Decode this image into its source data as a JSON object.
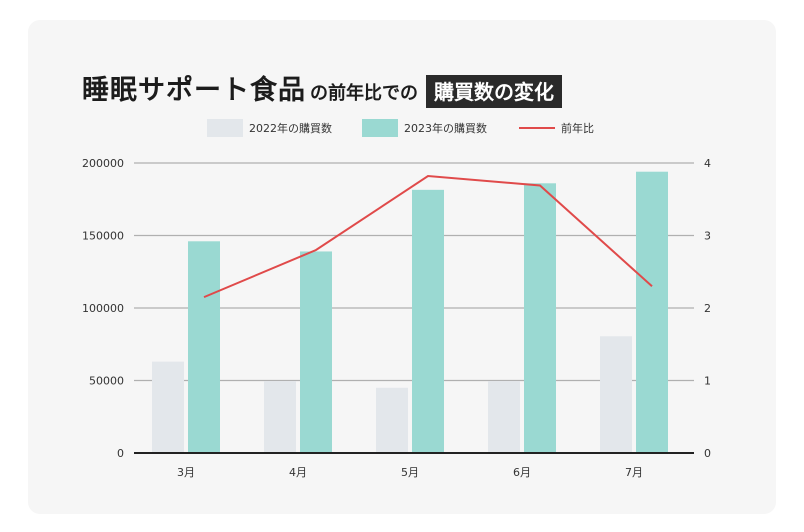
{
  "title": {
    "main": "睡眠サポート食品",
    "mid": "の前年比での",
    "highlight": "購買数の変化"
  },
  "colors": {
    "bar_2022": "#e3e7eb",
    "bar_2023": "#9ad9d2",
    "line": "#e04a4a",
    "grid": "#b0b0b0",
    "axis": "#222222",
    "text": "#333333"
  },
  "chart_data": {
    "type": "bar",
    "categories": [
      "3月",
      "4月",
      "5月",
      "6月",
      "7月"
    ],
    "series": [
      {
        "name": "2022年の購買数",
        "kind": "bar",
        "axis": "left",
        "values": [
          63000,
          49500,
          45000,
          49500,
          80500
        ]
      },
      {
        "name": "2023年の購買数",
        "kind": "bar",
        "axis": "left",
        "values": [
          146000,
          139000,
          181500,
          186000,
          194000
        ]
      },
      {
        "name": "前年比",
        "kind": "line",
        "axis": "right",
        "values": [
          2.15,
          2.8,
          3.82,
          3.69,
          2.3
        ]
      }
    ],
    "y_left": {
      "min": 0,
      "max": 200000,
      "ticks": [
        "0",
        "50000",
        "100000",
        "150000",
        "200000"
      ]
    },
    "y_right": {
      "min": 0,
      "max": 4,
      "ticks": [
        "0",
        "1",
        "2",
        "3",
        "4"
      ]
    },
    "grid": true,
    "legend_position": "top-center"
  }
}
